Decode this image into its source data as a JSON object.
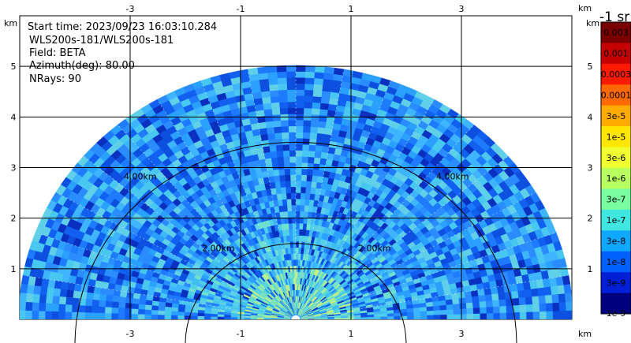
{
  "info": {
    "start_time": "Start time: 2023/09/23 16:03:10.284",
    "instrument": "WLS200s-181/WLS200s-181",
    "field": "Field: BETA",
    "azimuth": "Azimuth(deg): 80.00",
    "nrays": "NRays: 90"
  },
  "colorbar": {
    "unit_label": "-1 sr",
    "labels": [
      "0.003",
      "0.001",
      "0.0003",
      "0.0001",
      "3e-5",
      "1e-5",
      "3e-6",
      "1e-6",
      "3e-7",
      "1e-7",
      "3e-8",
      "1e-8",
      "3e-9",
      "1e-9"
    ],
    "colors": [
      "#7a0000",
      "#c40000",
      "#ff1a00",
      "#ff6a00",
      "#ffaa00",
      "#ffe600",
      "#f0ff30",
      "#b8ff60",
      "#7affa0",
      "#40e6e0",
      "#10a8ff",
      "#0060ff",
      "#0020d8",
      "#00007e"
    ]
  },
  "chart_data": {
    "type": "rhi_scan",
    "x_unit_label": "km",
    "y_unit_label": "km",
    "xlim": [
      -5.0,
      5.0
    ],
    "ylim": [
      0.0,
      6.0
    ],
    "x_ticks": [
      -3,
      -1,
      1,
      3
    ],
    "x_tick_labels": [
      "-3",
      "-1",
      "1",
      "3"
    ],
    "y_ticks": [
      1,
      2,
      3,
      4,
      5
    ],
    "y_tick_labels": [
      "1",
      "2",
      "3",
      "4",
      "5"
    ],
    "range_rings_km": [
      2.0,
      4.0
    ],
    "range_ring_labels": [
      "2.00km",
      "4.00km"
    ],
    "max_range_km": 5.0,
    "nrays": 90,
    "elevation_deg": [
      0,
      180
    ],
    "background_color": "#2196ff",
    "grid": true
  }
}
